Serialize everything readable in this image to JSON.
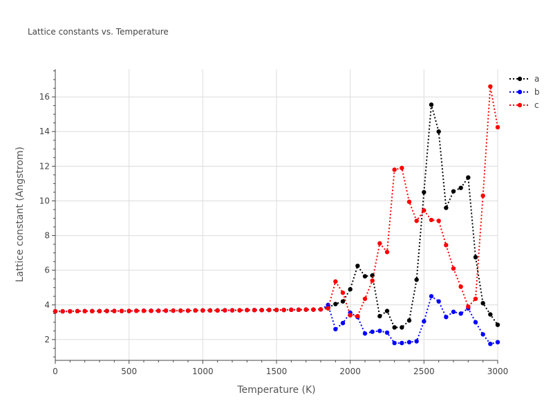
{
  "chart_data": {
    "type": "line",
    "title": "Lattice constants vs. Temperature",
    "xlabel": "Temperature (K)",
    "ylabel": "Lattice constant (Angstrom)",
    "xlim": [
      0,
      3000
    ],
    "ylim": [
      0.8,
      17.6
    ],
    "xticks": [
      0,
      500,
      1000,
      1500,
      2000,
      2500,
      3000
    ],
    "yticks": [
      2,
      4,
      6,
      8,
      10,
      12,
      14,
      16
    ],
    "grid": true,
    "legend_position": "top-right",
    "x": [
      0,
      50,
      100,
      150,
      200,
      250,
      300,
      350,
      400,
      450,
      500,
      550,
      600,
      650,
      700,
      750,
      800,
      850,
      900,
      950,
      1000,
      1050,
      1100,
      1150,
      1200,
      1250,
      1300,
      1350,
      1400,
      1450,
      1500,
      1550,
      1600,
      1650,
      1700,
      1750,
      1800,
      1850,
      1900,
      1950,
      2000,
      2050,
      2100,
      2150,
      2200,
      2250,
      2300,
      2350,
      2400,
      2450,
      2500,
      2550,
      2600,
      2650,
      2700,
      2750,
      2800,
      2850,
      2900,
      2950,
      3000
    ],
    "series": [
      {
        "name": "a",
        "color": "#000000",
        "values": [
          3.63,
          3.63,
          3.63,
          3.64,
          3.64,
          3.64,
          3.64,
          3.65,
          3.65,
          3.65,
          3.65,
          3.66,
          3.66,
          3.66,
          3.66,
          3.67,
          3.67,
          3.67,
          3.67,
          3.68,
          3.68,
          3.68,
          3.68,
          3.69,
          3.69,
          3.69,
          3.7,
          3.7,
          3.7,
          3.71,
          3.71,
          3.71,
          3.72,
          3.72,
          3.73,
          3.73,
          3.74,
          3.85,
          4.05,
          4.2,
          4.9,
          6.25,
          5.65,
          5.7,
          3.35,
          3.65,
          2.7,
          2.7,
          3.1,
          5.45,
          10.5,
          15.55,
          14.0,
          9.6,
          10.55,
          10.75,
          11.35,
          6.75,
          4.1,
          3.45,
          2.85
        ]
      },
      {
        "name": "b",
        "color": "#0000ff",
        "values": [
          3.63,
          3.63,
          3.63,
          3.64,
          3.64,
          3.64,
          3.64,
          3.65,
          3.65,
          3.65,
          3.65,
          3.66,
          3.66,
          3.66,
          3.66,
          3.67,
          3.67,
          3.67,
          3.67,
          3.68,
          3.68,
          3.68,
          3.68,
          3.69,
          3.69,
          3.69,
          3.7,
          3.7,
          3.7,
          3.71,
          3.71,
          3.71,
          3.72,
          3.72,
          3.73,
          3.73,
          3.74,
          4.0,
          2.6,
          2.95,
          3.55,
          3.3,
          2.35,
          2.45,
          2.5,
          2.4,
          1.8,
          1.8,
          1.85,
          1.9,
          3.05,
          4.5,
          4.2,
          3.3,
          3.6,
          3.5,
          3.8,
          3.0,
          2.3,
          1.75,
          1.85
        ]
      },
      {
        "name": "c",
        "color": "#ff0000",
        "values": [
          3.63,
          3.63,
          3.63,
          3.64,
          3.64,
          3.64,
          3.64,
          3.65,
          3.65,
          3.65,
          3.65,
          3.66,
          3.66,
          3.66,
          3.66,
          3.67,
          3.67,
          3.67,
          3.67,
          3.68,
          3.68,
          3.68,
          3.68,
          3.69,
          3.69,
          3.69,
          3.7,
          3.7,
          3.7,
          3.71,
          3.71,
          3.71,
          3.72,
          3.72,
          3.73,
          3.73,
          3.74,
          3.8,
          5.35,
          4.7,
          3.4,
          3.35,
          4.35,
          5.4,
          7.55,
          7.05,
          11.8,
          11.9,
          9.95,
          8.85,
          9.45,
          8.9,
          8.85,
          7.45,
          6.1,
          5.05,
          3.9,
          4.35,
          10.3,
          16.6,
          14.25
        ]
      }
    ]
  }
}
